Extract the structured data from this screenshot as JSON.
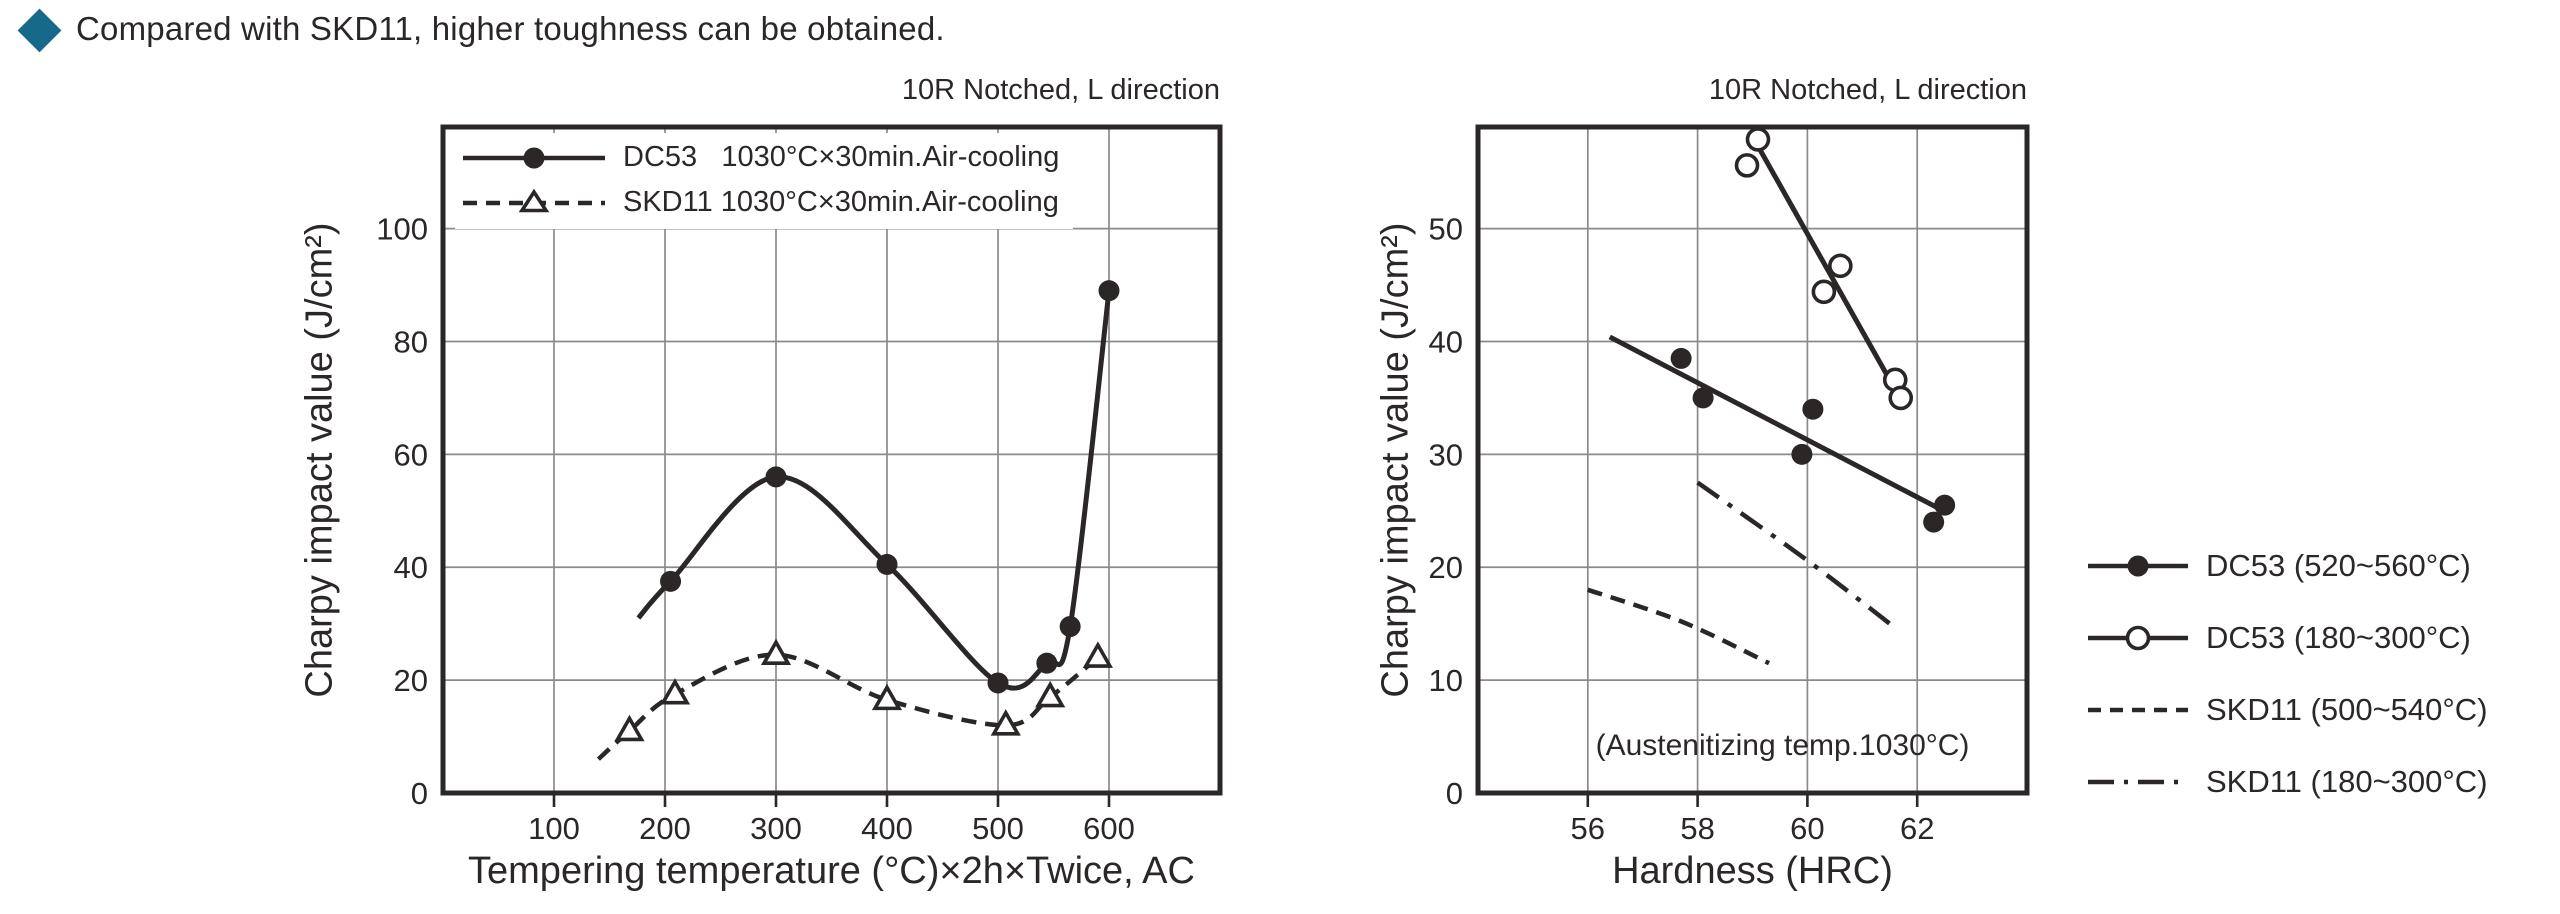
{
  "header": {
    "title": "Compared with SKD11, higher toughness can be obtained."
  },
  "colors": {
    "ink": "#2b2726",
    "grid": "#8a8a8a",
    "bullet": "#17698c",
    "background": "#ffffff"
  },
  "chart_data": [
    {
      "id": "tempering-chart",
      "type": "line",
      "title": "10R Notched, L direction",
      "xlabel": "Tempering temperature (°C)×2h×Twice, AC",
      "ylabel": "Charpy impact value (J/cm²)",
      "xlim": [
        0,
        700
      ],
      "ylim": [
        0,
        118
      ],
      "x_ticks": [
        100,
        200,
        300,
        400,
        500,
        600
      ],
      "y_ticks": [
        0,
        20,
        40,
        60,
        80,
        100
      ],
      "grid": true,
      "legend_position": "inside top-left",
      "series": [
        {
          "name": "DC53   1030°C×30min.Air-cooling",
          "line": "solid",
          "marker": "filled-circle",
          "x": [
            205,
            300,
            400,
            500,
            544,
            565,
            600
          ],
          "y": [
            37.5,
            56,
            40.5,
            19.5,
            23,
            29.5,
            89
          ],
          "line_start": [
            176,
            31
          ]
        },
        {
          "name": "SKD11 1030°C×30min.Air-cooling",
          "line": "dashed",
          "marker": "open-triangle",
          "x": [
            168,
            209,
            300,
            400,
            507,
            547,
            590
          ],
          "y": [
            11,
            17.5,
            24.5,
            16.5,
            12,
            17,
            24
          ],
          "line_start": [
            140,
            6
          ]
        }
      ]
    },
    {
      "id": "hardness-chart",
      "type": "scatter",
      "title": "10R Notched, L direction",
      "xlabel": "Hardness (HRC)",
      "ylabel": "Charpy impact value (J/cm²)",
      "annotation": "(Austenitizing temp.1030°C)",
      "xlim": [
        54,
        64
      ],
      "ylim": [
        0,
        59
      ],
      "x_ticks": [
        56,
        58,
        60,
        62
      ],
      "y_ticks": [
        0,
        10,
        20,
        30,
        40,
        50
      ],
      "grid": true,
      "legend_position": "outside right",
      "series": [
        {
          "name": "DC53 (520~560°C)",
          "line": "solid",
          "marker": "filled-circle",
          "points": [
            [
              57.7,
              38.5
            ],
            [
              58.1,
              35
            ],
            [
              60.1,
              34
            ],
            [
              59.9,
              30
            ],
            [
              62.5,
              25.5
            ],
            [
              62.3,
              24
            ]
          ],
          "trend": [
            [
              56.4,
              40.4
            ],
            [
              62.4,
              25.2
            ]
          ]
        },
        {
          "name": "DC53 (180~300°C)",
          "line": "solid",
          "marker": "open-circle",
          "points": [
            [
              59.1,
              57.9
            ],
            [
              58.9,
              55.6
            ],
            [
              60.6,
              46.7
            ],
            [
              60.3,
              44.4
            ],
            [
              61.6,
              36.6
            ],
            [
              61.7,
              35
            ]
          ],
          "trend": [
            [
              58.95,
              58.6
            ],
            [
              61.65,
              35.3
            ]
          ]
        },
        {
          "name": "SKD11 (500~540°C)",
          "line": "dashed",
          "marker": "none",
          "trend": [
            [
              56,
              18
            ],
            [
              57.7,
              15.2
            ],
            [
              59.3,
              11.5
            ]
          ]
        },
        {
          "name": "SKD11 (180~300°C)",
          "line": "dashdot",
          "marker": "none",
          "trend": [
            [
              58,
              27.5
            ],
            [
              60,
              20.6
            ],
            [
              61.5,
              15
            ]
          ]
        }
      ]
    }
  ]
}
